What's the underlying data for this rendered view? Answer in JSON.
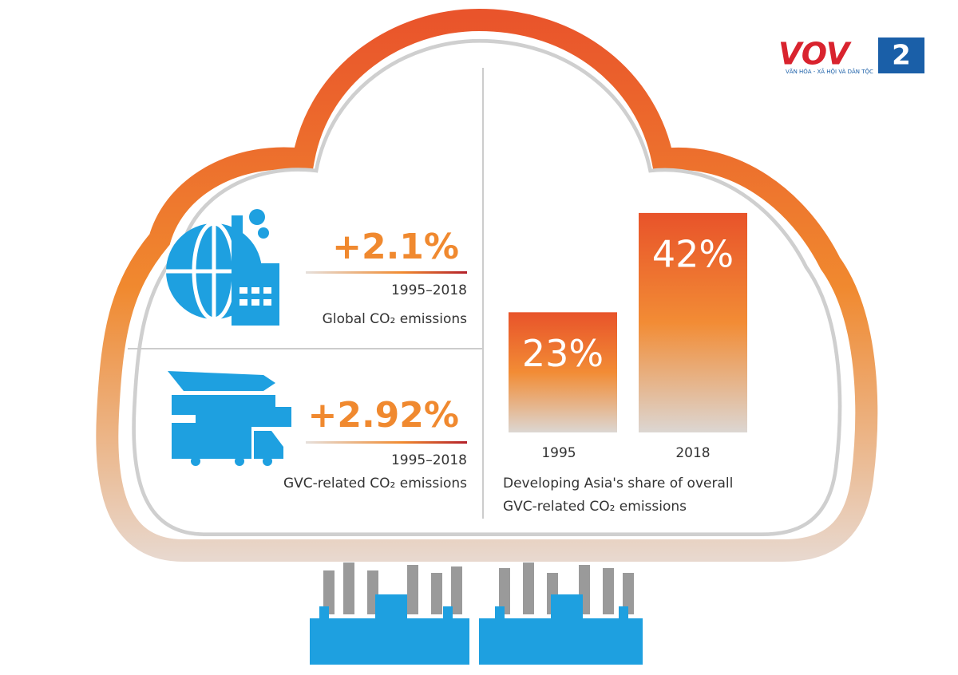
{
  "logo": {
    "brand": "VOV",
    "channel": "2",
    "tagline": "VĂN HÓA - XÃ HỘI VÀ DÂN TỘC"
  },
  "stats": [
    {
      "value": "+2.1%",
      "period": "1995–2018",
      "label": "Global CO₂ emissions"
    },
    {
      "value": "+2.92%",
      "period": "1995–2018",
      "label": "GVC-related CO₂ emissions"
    }
  ],
  "chart_data": {
    "type": "bar",
    "categories": [
      "1995",
      "2018"
    ],
    "values": [
      23,
      42
    ],
    "value_labels": [
      "23%",
      "42%"
    ],
    "caption": "Developing Asia's share of overall GVC-related CO₂ emissions"
  }
}
